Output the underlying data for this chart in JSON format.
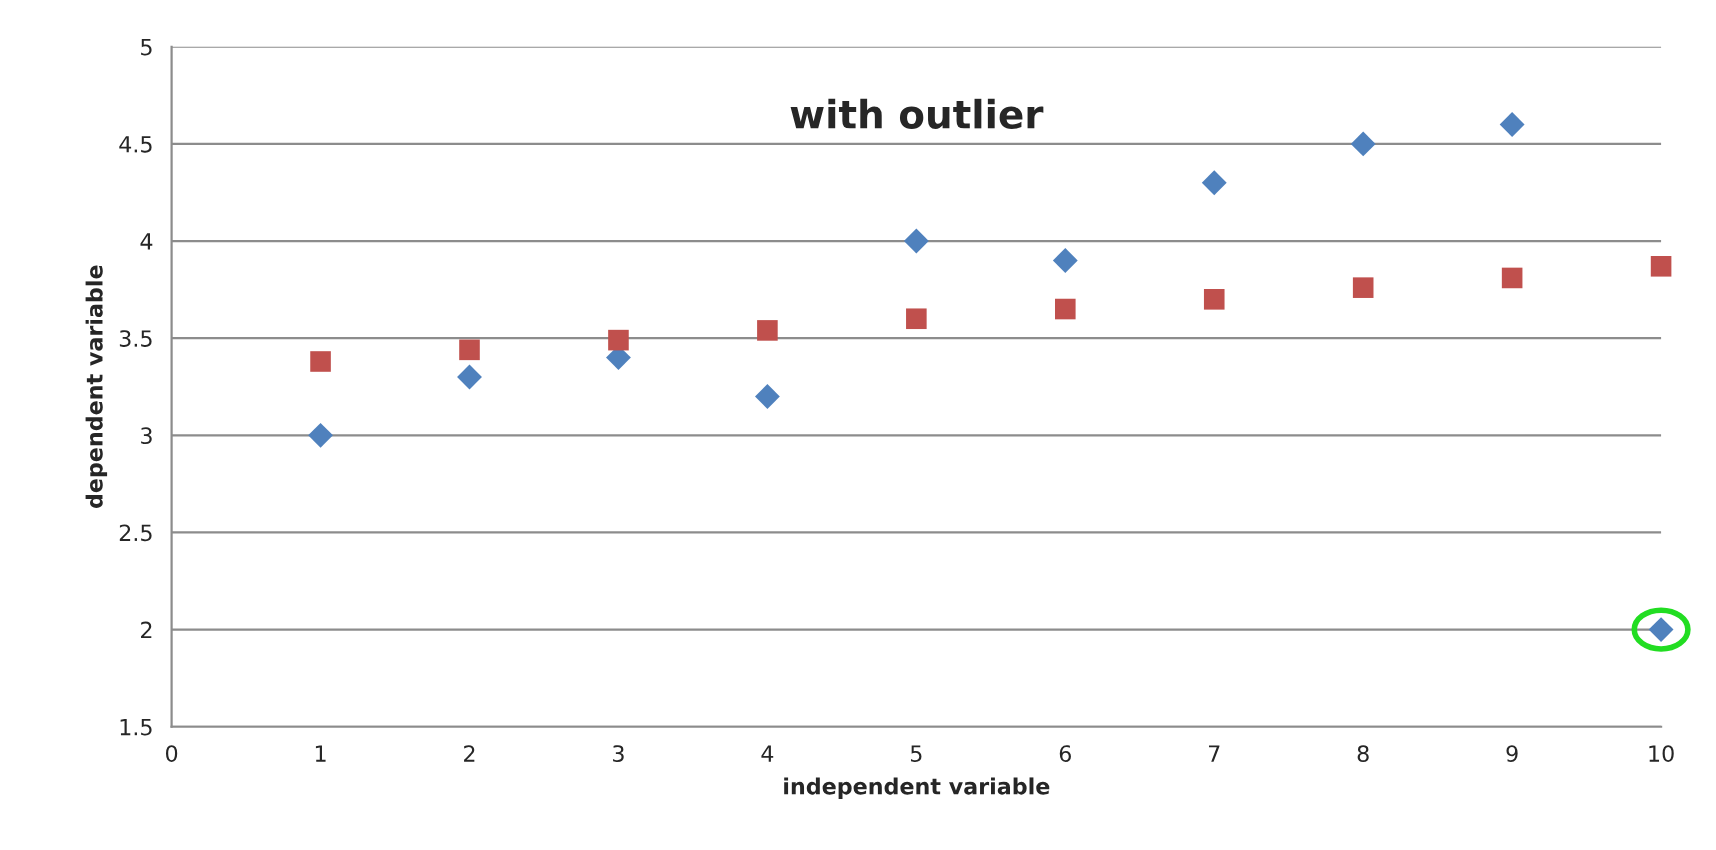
{
  "chart_data": {
    "type": "scatter",
    "title": "with outlier",
    "xlabel": "independent variable",
    "ylabel": "dependent variable",
    "xlim": [
      0,
      10
    ],
    "xticks": [
      0,
      1,
      2,
      3,
      4,
      5,
      6,
      7,
      8,
      9,
      10
    ],
    "ylim": [
      1.5,
      5
    ],
    "yticks": [
      1.5,
      2,
      2.5,
      3,
      3.5,
      4,
      4.5,
      5
    ],
    "grid": "y",
    "series": [
      {
        "color": "#4f81bd",
        "marker": "diamond",
        "x": [
          1,
          2,
          3,
          4,
          5,
          6,
          7,
          8,
          9,
          10
        ],
        "values": [
          3.0,
          3.3,
          3.4,
          3.2,
          4.0,
          3.9,
          4.3,
          4.5,
          4.6,
          2.0
        ]
      },
      {
        "color": "#c0504d",
        "marker": "square",
        "x": [
          1,
          2,
          3,
          4,
          5,
          6,
          7,
          8,
          9,
          10
        ],
        "values": [
          3.38,
          3.44,
          3.49,
          3.54,
          3.6,
          3.65,
          3.7,
          3.76,
          3.81,
          3.87
        ]
      }
    ]
  }
}
